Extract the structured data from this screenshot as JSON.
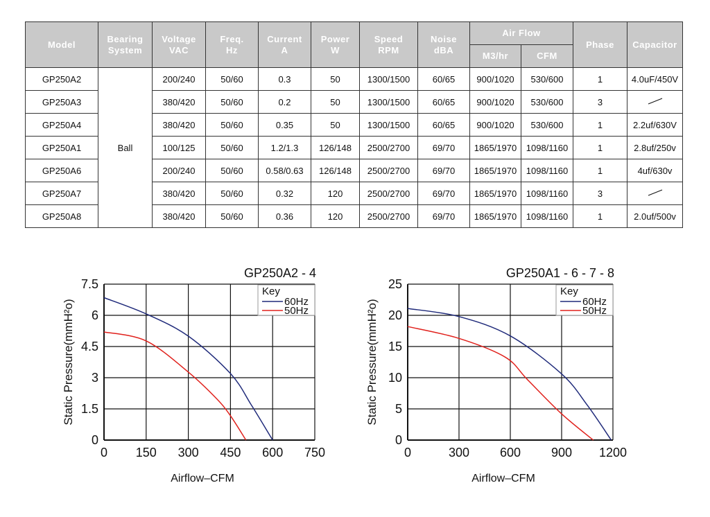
{
  "table": {
    "columns": [
      [
        "Model"
      ],
      [
        "Bearing",
        "System"
      ],
      [
        "Voltage",
        "VAC"
      ],
      [
        "Freq.",
        "Hz"
      ],
      [
        "Current",
        "A"
      ],
      [
        "Power",
        "W"
      ],
      [
        "Speed",
        "RPM"
      ],
      [
        "Noise",
        "dBA"
      ],
      [
        "Air Flow"
      ],
      [
        "Phase"
      ],
      [
        "Capacitor"
      ]
    ],
    "subcolumns": [
      "M3/hr",
      "CFM"
    ],
    "bearing": "Ball",
    "rows": [
      [
        "GP250A2",
        "200/240",
        "50/60",
        "0.3",
        "50",
        "1300/1500",
        "60/65",
        "900/1020",
        "530/600",
        "1",
        "4.0uF/450V"
      ],
      [
        "GP250A3",
        "380/420",
        "50/60",
        "0.2",
        "50",
        "1300/1500",
        "60/65",
        "900/1020",
        "530/600",
        "3",
        null
      ],
      [
        "GP250A4",
        "380/420",
        "50/60",
        "0.35",
        "50",
        "1300/1500",
        "60/65",
        "900/1020",
        "530/600",
        "1",
        "2.2uf/630V"
      ],
      [
        "GP250A1",
        "100/125",
        "50/60",
        "1.2/1.3",
        "126/148",
        "2500/2700",
        "69/70",
        "1865/1970",
        "1098/1160",
        "1",
        "2.8uf/250v"
      ],
      [
        "GP250A6",
        "200/240",
        "50/60",
        "0.58/0.63",
        "126/148",
        "2500/2700",
        "69/70",
        "1865/1970",
        "1098/1160",
        "1",
        "4uf/630v"
      ],
      [
        "GP250A7",
        "380/420",
        "50/60",
        "0.32",
        "120",
        "2500/2700",
        "69/70",
        "1865/1970",
        "1098/1160",
        "3",
        null
      ],
      [
        "GP250A8",
        "380/420",
        "50/60",
        "0.36",
        "120",
        "2500/2700",
        "69/70",
        "1865/1970",
        "1098/1160",
        "1",
        "2.0uf/500v"
      ]
    ]
  },
  "chart_data": [
    {
      "type": "line",
      "title": "GP250A2 - 4",
      "x_label": "Airflow–CFM",
      "y_label": "Static Pressure(mmH²o)",
      "legend_title": "Key",
      "legend": "top-right",
      "grid": true,
      "xlim": [
        0,
        750
      ],
      "xticks": [
        0,
        150,
        300,
        450,
        600,
        750
      ],
      "ylim": [
        0,
        7.5
      ],
      "yticks": [
        0,
        1.5,
        3,
        4.5,
        6,
        7.5
      ],
      "series": [
        {
          "name": "60Hz",
          "color": "#1f2a7a",
          "x": [
            0,
            150,
            300,
            450,
            525,
            600
          ],
          "values": [
            6.85,
            6.07,
            5.0,
            3.2,
            1.67,
            0
          ]
        },
        {
          "name": "50Hz",
          "color": "#e0201b",
          "x": [
            0,
            150,
            300,
            400,
            450,
            505
          ],
          "values": [
            5.2,
            4.77,
            3.27,
            2.0,
            1.17,
            0
          ]
        }
      ]
    },
    {
      "type": "line",
      "title": "GP250A1 - 6 - 7 - 8",
      "x_label": "Airflow–CFM",
      "y_label": "Static Pressure(mmH²o)",
      "legend_title": "Key",
      "legend": "top-right",
      "grid": true,
      "xlim": [
        0,
        1200
      ],
      "xticks": [
        0,
        300,
        600,
        900,
        1200
      ],
      "ylim": [
        0,
        25
      ],
      "yticks": [
        0,
        5,
        10,
        15,
        20,
        25
      ],
      "series": [
        {
          "name": "60Hz",
          "color": "#1f2a7a",
          "x": [
            0,
            300,
            600,
            900,
            1050,
            1190
          ],
          "values": [
            21.1,
            19.8,
            16.7,
            10.6,
            5.6,
            0
          ]
        },
        {
          "name": "50Hz",
          "color": "#e0201b",
          "x": [
            0,
            300,
            570,
            700,
            900,
            1085
          ],
          "values": [
            18.2,
            16.3,
            13.3,
            9.7,
            4.2,
            0
          ]
        }
      ]
    }
  ]
}
